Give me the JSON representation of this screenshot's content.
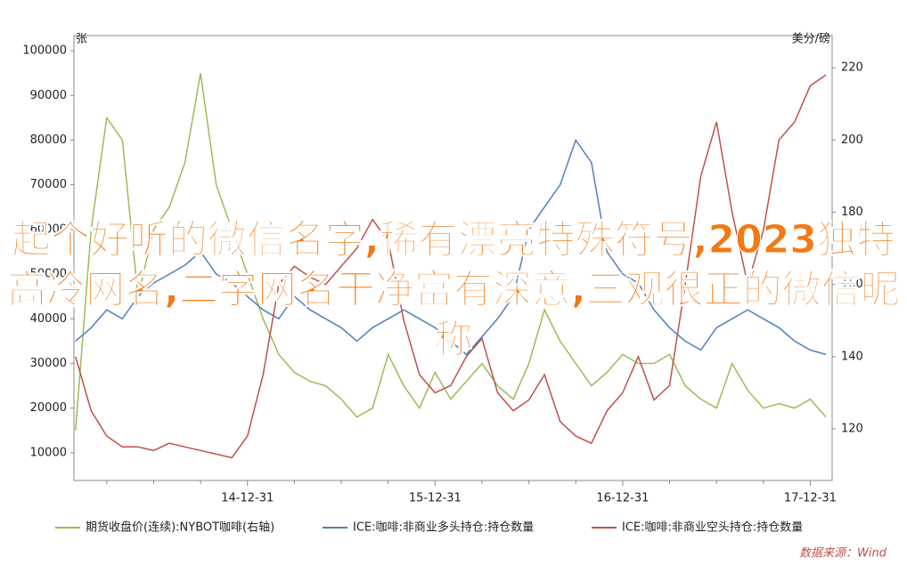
{
  "chart_data": {
    "type": "line",
    "title": "起个好听的微信名字,稀有漂亮特殊符号,2023独特高冷网名,二字网名干净富有深意,三观很正的微信昵称",
    "y_label": "张",
    "y2_label": "美分/磅",
    "source": "数据来源：Wind",
    "categories": [
      null,
      null,
      null,
      null,
      null,
      null,
      null,
      null,
      null,
      null,
      null,
      "14-12-31",
      null,
      null,
      null,
      null,
      null,
      null,
      null,
      null,
      null,
      null,
      null,
      "15-12-31",
      null,
      null,
      null,
      null,
      null,
      null,
      null,
      null,
      null,
      null,
      null,
      "16-12-31",
      null,
      null,
      null,
      null,
      null,
      null,
      null,
      null,
      null,
      null,
      null,
      "17-12-31",
      null
    ],
    "ylim": [
      3800,
      103400
    ],
    "yticks": [
      10000,
      20000,
      30000,
      40000,
      50000,
      60000,
      70000,
      80000,
      90000,
      100000
    ],
    "y2lim": [
      105.7,
      228.9
    ],
    "y2ticks": [
      120,
      140,
      160,
      180,
      200,
      220
    ],
    "series": [
      {
        "name": "期货收盘价(连续):NYBOT咖啡(右轴)",
        "color": "#9bbb59",
        "values": [
          15000,
          60000,
          85000,
          80000,
          45000,
          60000,
          65000,
          75000,
          95000,
          70000,
          60000,
          50000,
          40000,
          32000,
          28000,
          26000,
          25000,
          22000,
          18000,
          20000,
          32000,
          25000,
          20000,
          28000,
          22000,
          26000,
          30000,
          25000,
          22000,
          30000,
          42000,
          35000,
          30000,
          25000,
          28000,
          32000,
          30000,
          30000,
          32000,
          25000,
          22000,
          20000,
          30000,
          24000,
          20000,
          21000,
          20000,
          22000,
          18000
        ]
      },
      {
        "name": "ICE:咖啡:非商业多头持仓:持仓数量",
        "color": "#4f81bd",
        "values": [
          35000,
          38000,
          42000,
          40000,
          45000,
          48000,
          50000,
          52000,
          55000,
          50000,
          48000,
          45000,
          42000,
          40000,
          45000,
          42000,
          40000,
          38000,
          35000,
          38000,
          40000,
          42000,
          40000,
          38000,
          35000,
          32000,
          36000,
          40000,
          45000,
          60000,
          65000,
          70000,
          80000,
          75000,
          55000,
          50000,
          48000,
          42000,
          38000,
          35000,
          33000,
          38000,
          40000,
          42000,
          40000,
          38000,
          35000,
          33000,
          32000
        ]
      },
      {
        "name": "ICE:咖啡:非商业空头持仓:持仓数量",
        "color": "#c0504d",
        "axis": "y2",
        "values": [
          140,
          125,
          118,
          115,
          115,
          114,
          116,
          115,
          114,
          113,
          112,
          118,
          135,
          160,
          165,
          162,
          160,
          165,
          170,
          178,
          172,
          150,
          135,
          130,
          132,
          140,
          145,
          130,
          125,
          128,
          135,
          122,
          118,
          116,
          125,
          130,
          140,
          128,
          132,
          160,
          190,
          205,
          180,
          160,
          175,
          200,
          205,
          215,
          218
        ]
      }
    ]
  }
}
